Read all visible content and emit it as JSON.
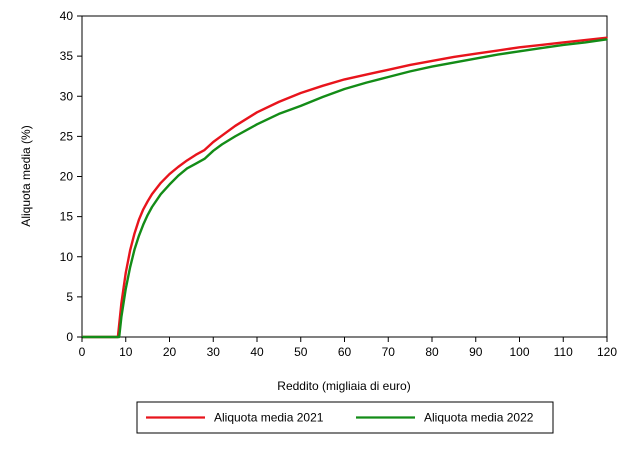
{
  "chart_data": {
    "type": "line",
    "xlabel": "Reddito (migliaia di euro)",
    "ylabel": "Aliquota media (%)",
    "xlim": [
      0,
      120
    ],
    "ylim": [
      0,
      40
    ],
    "xticks": [
      0,
      10,
      20,
      30,
      40,
      50,
      60,
      70,
      80,
      90,
      100,
      110,
      120
    ],
    "yticks": [
      0,
      5,
      10,
      15,
      20,
      25,
      30,
      35,
      40
    ],
    "grid": false,
    "legend_position": "bottom",
    "series": [
      {
        "name": "Aliquota media 2021",
        "color": "#e8141c",
        "x": [
          0,
          8,
          8.2,
          9,
          10,
          11,
          12,
          13,
          14,
          15,
          16,
          18,
          20,
          22,
          24,
          26,
          28,
          30,
          32,
          35,
          40,
          45,
          50,
          55,
          60,
          65,
          70,
          75,
          80,
          85,
          90,
          95,
          100,
          105,
          110,
          115,
          120
        ],
        "y": [
          0,
          0,
          0,
          4.2,
          8.0,
          10.8,
          12.9,
          14.6,
          15.9,
          16.9,
          17.8,
          19.2,
          20.3,
          21.2,
          22.0,
          22.7,
          23.3,
          24.3,
          25.1,
          26.3,
          28.0,
          29.3,
          30.4,
          31.3,
          32.1,
          32.7,
          33.3,
          33.9,
          34.4,
          34.9,
          35.3,
          35.7,
          36.1,
          36.4,
          36.7,
          37.0,
          37.3
        ]
      },
      {
        "name": "Aliquota media 2022",
        "color": "#138c17",
        "x": [
          0,
          8,
          8.5,
          9,
          10,
          11,
          12,
          13,
          14,
          15,
          16,
          18,
          20,
          22,
          24,
          26,
          28,
          30,
          32,
          35,
          40,
          45,
          50,
          55,
          60,
          65,
          70,
          75,
          80,
          85,
          90,
          95,
          100,
          105,
          110,
          115,
          120
        ],
        "y": [
          0,
          0,
          0,
          2.5,
          6.0,
          8.7,
          10.9,
          12.6,
          14.0,
          15.2,
          16.2,
          17.8,
          19.0,
          20.1,
          21.0,
          21.6,
          22.2,
          23.2,
          24.0,
          25.0,
          26.5,
          27.8,
          28.8,
          29.9,
          30.9,
          31.7,
          32.4,
          33.1,
          33.7,
          34.2,
          34.7,
          35.2,
          35.6,
          36.0,
          36.4,
          36.7,
          37.1
        ]
      }
    ]
  }
}
